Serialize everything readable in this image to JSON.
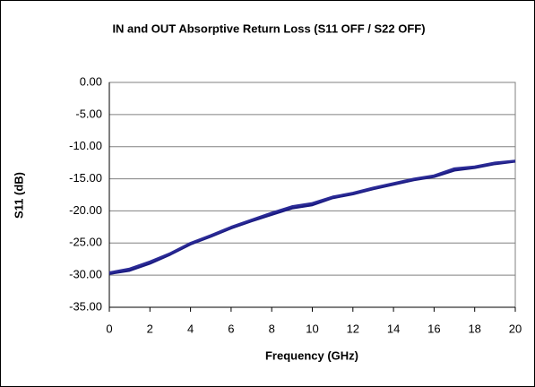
{
  "chart_data": {
    "type": "line",
    "title": "IN and OUT Absorptive Return Loss (S11 OFF / S22 OFF)",
    "xlabel": "Frequency (GHz)",
    "ylabel": "S11 (dB)",
    "x": [
      0,
      1,
      2,
      3,
      4,
      5,
      6,
      7,
      8,
      9,
      10,
      11,
      12,
      13,
      14,
      15,
      16,
      17,
      18,
      19,
      20
    ],
    "series": [
      {
        "color": "#1a1a80",
        "values": [
          -29.8,
          -29.3,
          -28.2,
          -26.8,
          -25.2,
          -24.0,
          -22.7,
          -21.6,
          -20.6,
          -19.6,
          -19.1,
          -18.0,
          -17.4,
          -16.6,
          -15.9,
          -15.2,
          -14.7,
          -13.7,
          -13.3,
          -12.7,
          -12.3
        ]
      },
      {
        "color": "#2a2a96",
        "values": [
          -29.6,
          -29.0,
          -27.9,
          -26.6,
          -25.0,
          -23.8,
          -22.5,
          -21.4,
          -20.3,
          -19.3,
          -18.8,
          -17.8,
          -17.2,
          -16.4,
          -15.7,
          -15.0,
          -14.5,
          -13.4,
          -13.1,
          -12.5,
          -12.2
        ]
      }
    ],
    "xlim": [
      0,
      20
    ],
    "xticks": [
      0,
      2,
      4,
      6,
      8,
      10,
      12,
      14,
      16,
      18,
      20
    ],
    "ylim": [
      -35,
      0
    ],
    "yticks": [
      {
        "value": 0,
        "label": "0.00"
      },
      {
        "value": -5,
        "label": "-5.00"
      },
      {
        "value": -10,
        "label": "-10.00"
      },
      {
        "value": -15,
        "label": "-15.00"
      },
      {
        "value": -20,
        "label": "-20.00"
      },
      {
        "value": -25,
        "label": "-25.00"
      },
      {
        "value": -30,
        "label": "-30.00"
      },
      {
        "value": -35,
        "label": "-35.00"
      }
    ],
    "grid": true
  }
}
